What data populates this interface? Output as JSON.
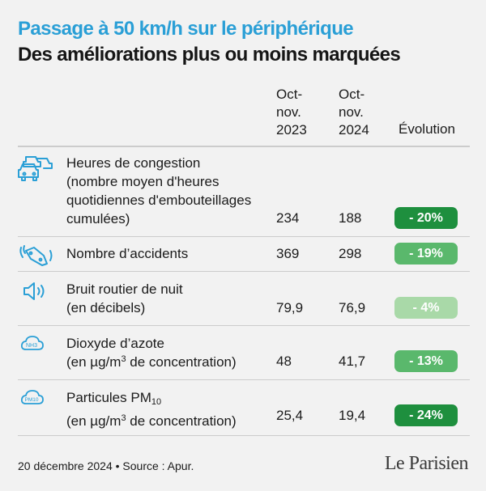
{
  "header": {
    "title": "Passage à 50 km/h sur le périphérique",
    "subtitle": "Des améliorations plus ou moins marquées"
  },
  "columns": {
    "period1": [
      "Oct-",
      "nov.",
      "2023"
    ],
    "period2": [
      "Oct-",
      "nov.",
      "2024"
    ],
    "evolution": "Évolution"
  },
  "chart_data": {
    "type": "table",
    "title": "Passage à 50 km/h sur le périphérique",
    "subtitle": "Des améliorations plus ou moins marquées",
    "columns": [
      "Oct-nov. 2023",
      "Oct-nov. 2024",
      "Évolution"
    ],
    "rows": [
      {
        "icon": "traffic-jam-icon",
        "label_lines": [
          "Heures de congestion",
          "(nombre moyen d'heures",
          "quotidiennes d'embouteillages",
          "cumulées)"
        ],
        "v2023": "234",
        "v2024": "188",
        "evolution": "- 20%",
        "evolution_value": -20,
        "badge_color": "#1e8f3e"
      },
      {
        "icon": "accident-icon",
        "label_lines": [
          "Nombre d’accidents"
        ],
        "v2023": "369",
        "v2024": "298",
        "evolution": "- 19%",
        "evolution_value": -19,
        "badge_color": "#5ab86c"
      },
      {
        "icon": "speaker-icon",
        "label_lines": [
          "Bruit routier de nuit",
          "(en décibels)"
        ],
        "v2023": "79,9",
        "v2024": "76,9",
        "evolution": "- 4%",
        "evolution_value": -4,
        "badge_color": "#a9d9a8"
      },
      {
        "icon": "nitrogen-dioxide-icon",
        "label_lines": [
          "Dioxyde d’azote",
          "(en µg/m³ de concentration)"
        ],
        "label_main": "Dioxyde d’azote",
        "unit_prefix": "(en µg/m",
        "unit_sup": "3",
        "unit_suffix": " de concentration)",
        "v2023": "48",
        "v2024": "41,7",
        "evolution": "- 13%",
        "evolution_value": -13,
        "badge_color": "#5ab86c"
      },
      {
        "icon": "particles-icon",
        "label_lines": [
          "Particules PM10",
          "(en µg/m³ de concentration)"
        ],
        "label_main": "Particules PM",
        "label_sub": "10",
        "unit_prefix": "(en µg/m",
        "unit_sup": "3",
        "unit_suffix": " de concentration)",
        "v2023": "25,4",
        "v2024": "19,4",
        "evolution": "- 24%",
        "evolution_value": -24,
        "badge_color": "#1e8f3e"
      }
    ]
  },
  "icons": {
    "nh3_text": "NH3",
    "pm_text": "PM10"
  },
  "footer": {
    "source": "20 décembre 2024 • Source : Apur.",
    "brand": "Le Parisien"
  }
}
